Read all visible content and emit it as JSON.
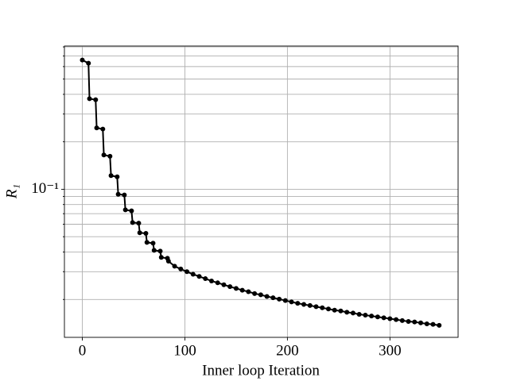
{
  "chart_data": {
    "type": "line",
    "xlabel": "Inner loop Iteration",
    "ylabel": "R₁",
    "x": [
      0,
      6,
      7,
      13,
      14,
      20,
      21,
      27,
      28,
      34,
      35,
      41,
      42,
      48,
      49,
      55,
      56,
      62,
      63,
      69,
      70,
      76,
      77,
      83,
      84,
      90,
      96,
      102,
      108,
      114,
      120,
      126,
      132,
      138,
      144,
      150,
      156,
      162,
      168,
      174,
      180,
      186,
      192,
      198,
      204,
      210,
      216,
      222,
      228,
      234,
      240,
      246,
      252,
      258,
      264,
      270,
      276,
      282,
      288,
      294,
      300,
      306,
      312,
      318,
      324,
      330,
      336,
      342,
      348
    ],
    "series": [
      {
        "color": "#000000",
        "values": [
          0.66,
          0.63,
          0.375,
          0.37,
          0.245,
          0.241,
          0.165,
          0.162,
          0.122,
          0.12,
          0.093,
          0.092,
          0.074,
          0.073,
          0.0615,
          0.061,
          0.053,
          0.0525,
          0.046,
          0.0455,
          0.041,
          0.0405,
          0.037,
          0.0365,
          0.035,
          0.0325,
          0.0312,
          0.03,
          0.0289,
          0.028,
          0.0271,
          0.0262,
          0.0255,
          0.0248,
          0.0241,
          0.0235,
          0.0229,
          0.0224,
          0.0218,
          0.0214,
          0.0209,
          0.0205,
          0.0201,
          0.0197,
          0.0193,
          0.0189,
          0.0186,
          0.0183,
          0.018,
          0.0177,
          0.0174,
          0.0171,
          0.0169,
          0.0166,
          0.0164,
          0.0161,
          0.0159,
          0.0157,
          0.0155,
          0.0153,
          0.0151,
          0.0149,
          0.0147,
          0.0145,
          0.0144,
          0.0142,
          0.014,
          0.0139,
          0.0137
        ]
      }
    ],
    "xlim": [
      -17.45,
      366.45
    ],
    "xticks": [
      0,
      100,
      200,
      300
    ],
    "ylim": [
      0.0115,
      0.81
    ],
    "log_y": true,
    "yticks": [
      {
        "value": 0.1,
        "label": "10⁻¹"
      }
    ],
    "minor_yticks": [
      0.02,
      0.03,
      0.04,
      0.05,
      0.06,
      0.07,
      0.08,
      0.09,
      0.2,
      0.3,
      0.4,
      0.5,
      0.6,
      0.7,
      0.8
    ],
    "grid": true
  }
}
